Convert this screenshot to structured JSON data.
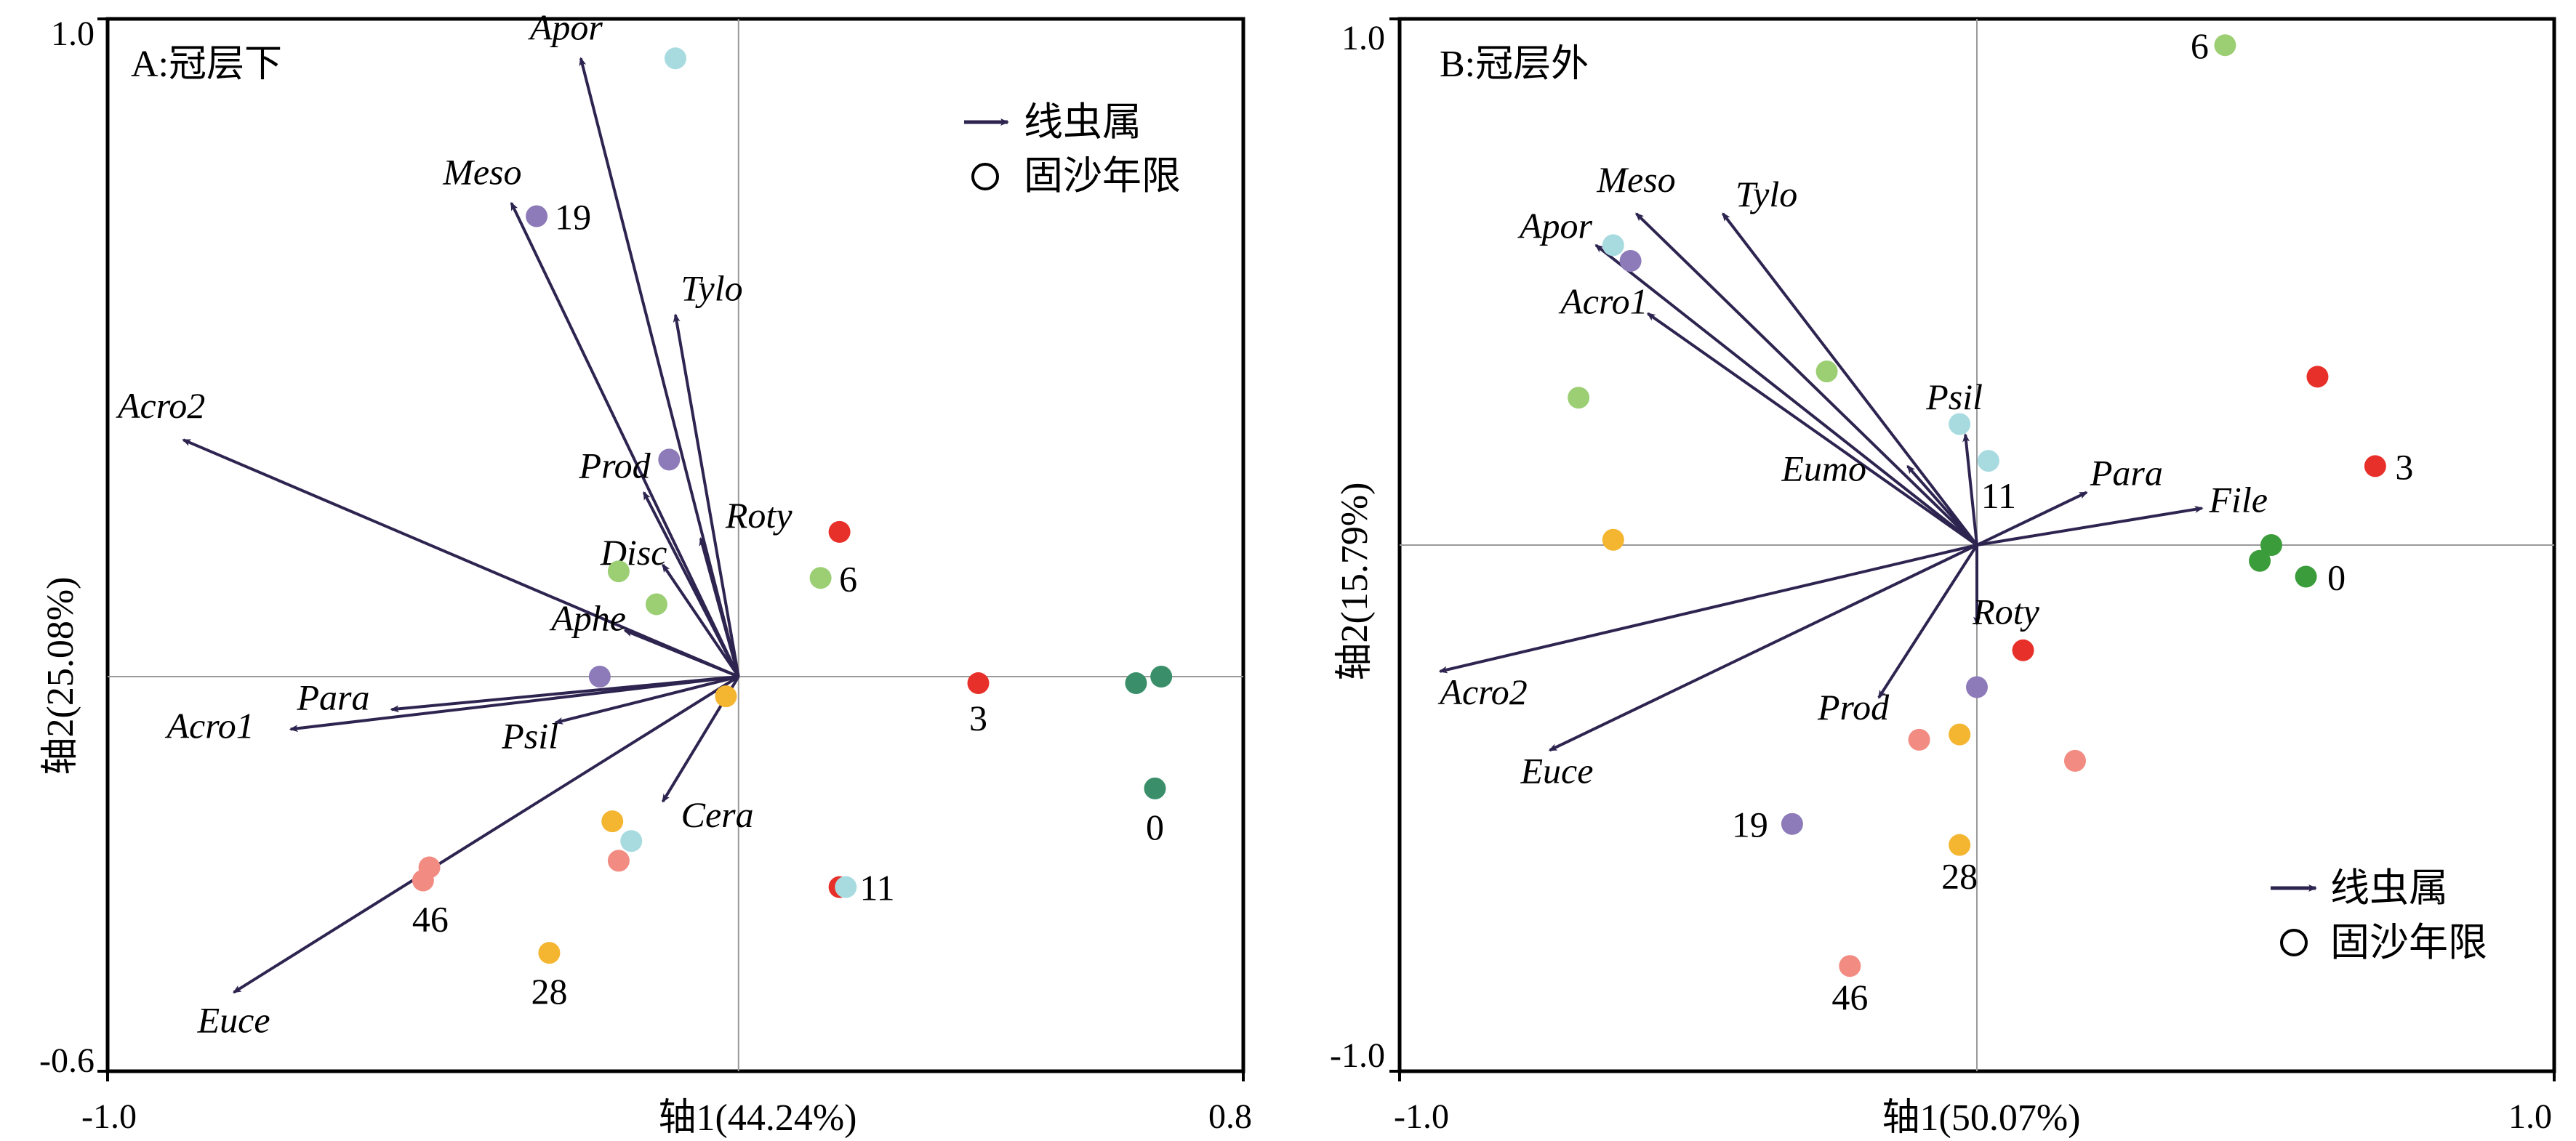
{
  "chart_data": [
    {
      "type": "scatter",
      "subtype": "biplot",
      "title": "A:冠层下",
      "xlabel": "轴1(44.24%)",
      "ylabel": "轴2(25.08%)",
      "xlim": [
        -1.0,
        0.8
      ],
      "ylim": [
        -0.6,
        1.0
      ],
      "x_ticks": [
        "-1.0",
        "0.8"
      ],
      "y_ticks": [
        "1.0",
        "-0.6"
      ],
      "grid": "zero lines only",
      "legend": {
        "position": "top-right",
        "entries": [
          {
            "label": "线虫属",
            "symbol": "arrow"
          },
          {
            "label": "固沙年限",
            "symbol": "circle"
          }
        ]
      },
      "arrows": [
        {
          "name": "Apor",
          "x": -0.25,
          "y": 0.94
        },
        {
          "name": "Meso",
          "x": -0.36,
          "y": 0.72
        },
        {
          "name": "Tylo",
          "x": -0.1,
          "y": 0.55
        },
        {
          "name": "Acro2",
          "x": -0.88,
          "y": 0.36
        },
        {
          "name": "Prod",
          "x": -0.15,
          "y": 0.28
        },
        {
          "name": "Roty",
          "x": -0.06,
          "y": 0.21
        },
        {
          "name": "Disc",
          "x": -0.12,
          "y": 0.17
        },
        {
          "name": "Aphe",
          "x": -0.18,
          "y": 0.07
        },
        {
          "name": "Para",
          "x": -0.55,
          "y": -0.05
        },
        {
          "name": "Acro1",
          "x": -0.71,
          "y": -0.08
        },
        {
          "name": "Psil",
          "x": -0.29,
          "y": -0.07
        },
        {
          "name": "Cera",
          "x": -0.12,
          "y": -0.19
        },
        {
          "name": "Euce",
          "x": -0.8,
          "y": -0.48
        }
      ],
      "points": [
        {
          "x": -0.1,
          "y": 0.94,
          "color": "#a8dbe0"
        },
        {
          "x": -0.32,
          "y": 0.7,
          "color": "#8c7bb8",
          "label": "19"
        },
        {
          "x": -0.11,
          "y": 0.33,
          "color": "#8c7bb8"
        },
        {
          "x": 0.16,
          "y": 0.22,
          "color": "#e8302a"
        },
        {
          "x": -0.19,
          "y": 0.16,
          "color": "#9ccf74"
        },
        {
          "x": 0.13,
          "y": 0.15,
          "color": "#9ccf74",
          "label": "6"
        },
        {
          "x": -0.13,
          "y": 0.11,
          "color": "#9ccf74"
        },
        {
          "x": -0.22,
          "y": 0.0,
          "color": "#8c7bb8"
        },
        {
          "x": 0.38,
          "y": -0.01,
          "color": "#e8302a",
          "label": "3"
        },
        {
          "x": 0.63,
          "y": -0.01,
          "color": "#3a8f6a"
        },
        {
          "x": 0.67,
          "y": 0.0,
          "color": "#3a8f6a"
        },
        {
          "x": 0.66,
          "y": -0.17,
          "color": "#3a8f6a",
          "label": "0"
        },
        {
          "x": -0.02,
          "y": -0.03,
          "color": "#f4b530"
        },
        {
          "x": -0.2,
          "y": -0.22,
          "color": "#f4b530"
        },
        {
          "x": -0.17,
          "y": -0.25,
          "color": "#a8dbe0"
        },
        {
          "x": -0.19,
          "y": -0.28,
          "color": "#f28b82"
        },
        {
          "x": 0.16,
          "y": -0.32,
          "color": "#e8302a",
          "label": "11"
        },
        {
          "x": 0.17,
          "y": -0.32,
          "color": "#a8dbe0"
        },
        {
          "x": -0.49,
          "y": -0.29,
          "color": "#f28b82"
        },
        {
          "x": -0.5,
          "y": -0.31,
          "color": "#f28b82",
          "label": "46"
        },
        {
          "x": -0.3,
          "y": -0.42,
          "color": "#f4b530",
          "label": "28"
        }
      ]
    },
    {
      "type": "scatter",
      "subtype": "biplot",
      "title": "B:冠层外",
      "xlabel": "轴1(50.07%)",
      "ylabel": "轴2(15.79%)",
      "xlim": [
        -1.0,
        1.0
      ],
      "ylim": [
        -1.0,
        1.0
      ],
      "x_ticks": [
        "-1.0",
        "1.0"
      ],
      "y_ticks": [
        "1.0",
        "-1.0"
      ],
      "grid": "zero lines only",
      "legend": {
        "position": "bottom-right",
        "entries": [
          {
            "label": "线虫属",
            "symbol": "arrow"
          },
          {
            "label": "固沙年限",
            "symbol": "circle"
          }
        ]
      },
      "arrows": [
        {
          "name": "Meso",
          "x": -0.59,
          "y": 0.63
        },
        {
          "name": "Tylo",
          "x": -0.44,
          "y": 0.63
        },
        {
          "name": "Apor",
          "x": -0.66,
          "y": 0.57
        },
        {
          "name": "Acro1",
          "x": -0.57,
          "y": 0.44
        },
        {
          "name": "Psil",
          "x": -0.02,
          "y": 0.21
        },
        {
          "name": "Eumo",
          "x": -0.12,
          "y": 0.15
        },
        {
          "name": "Para",
          "x": 0.19,
          "y": 0.1
        },
        {
          "name": "File",
          "x": 0.39,
          "y": 0.07
        },
        {
          "name": "Roty",
          "x": 0.0,
          "y": -0.15
        },
        {
          "name": "Prod",
          "x": -0.17,
          "y": -0.29
        },
        {
          "name": "Acro2",
          "x": -0.93,
          "y": -0.24
        },
        {
          "name": "Euce",
          "x": -0.74,
          "y": -0.39
        }
      ],
      "points": [
        {
          "x": 0.43,
          "y": 0.95,
          "color": "#9ccf74",
          "label": "6"
        },
        {
          "x": -0.63,
          "y": 0.57,
          "color": "#a8dbe0"
        },
        {
          "x": -0.6,
          "y": 0.54,
          "color": "#8c7bb8"
        },
        {
          "x": -0.26,
          "y": 0.33,
          "color": "#9ccf74"
        },
        {
          "x": -0.69,
          "y": 0.28,
          "color": "#9ccf74"
        },
        {
          "x": 0.59,
          "y": 0.32,
          "color": "#e8302a"
        },
        {
          "x": -0.03,
          "y": 0.23,
          "color": "#a8dbe0"
        },
        {
          "x": 0.02,
          "y": 0.16,
          "color": "#a8dbe0",
          "label": "11"
        },
        {
          "x": 0.69,
          "y": 0.15,
          "color": "#e8302a",
          "label": "3"
        },
        {
          "x": -0.63,
          "y": 0.01,
          "color": "#f4b530"
        },
        {
          "x": 0.51,
          "y": 0.0,
          "color": "#3a9c3a"
        },
        {
          "x": 0.49,
          "y": -0.03,
          "color": "#3a9c3a"
        },
        {
          "x": 0.57,
          "y": -0.06,
          "color": "#3a9c3a",
          "label": "0"
        },
        {
          "x": 0.08,
          "y": -0.2,
          "color": "#e8302a"
        },
        {
          "x": 0.0,
          "y": -0.27,
          "color": "#8c7bb8"
        },
        {
          "x": -0.1,
          "y": -0.37,
          "color": "#f28b82"
        },
        {
          "x": -0.03,
          "y": -0.36,
          "color": "#f4b530"
        },
        {
          "x": 0.17,
          "y": -0.41,
          "color": "#f28b82"
        },
        {
          "x": -0.32,
          "y": -0.53,
          "color": "#8c7bb8",
          "label": "19"
        },
        {
          "x": -0.03,
          "y": -0.57,
          "color": "#f4b530",
          "label": "28"
        },
        {
          "x": -0.22,
          "y": -0.8,
          "color": "#f28b82",
          "label": "46"
        }
      ]
    }
  ]
}
